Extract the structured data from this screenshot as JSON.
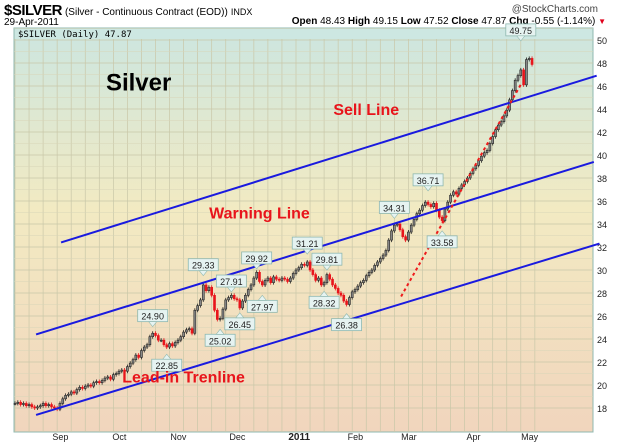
{
  "header": {
    "symbol": "$SILVER",
    "description": "(Silver - Continuous Contract (EOD))",
    "exchange": "INDX",
    "date": "29-Apr-2011",
    "watermark": "@StockCharts.com",
    "open_label": "Open",
    "open": "48.43",
    "high_label": "High",
    "high": "49.15",
    "low_label": "Low",
    "low": "47.52",
    "close_label": "Close",
    "close": "47.87",
    "chg_label": "Chg",
    "chg": "-0.55 (-1.14%)",
    "chg_color": "#e0001b"
  },
  "chart_data": {
    "type": "candlestick",
    "legend": "$SILVER (Daily) 47.87",
    "ylim": [
      16.5,
      51
    ],
    "y_ticks": [
      18,
      20,
      22,
      24,
      26,
      28,
      30,
      32,
      34,
      36,
      38,
      40,
      42,
      44,
      46,
      48,
      50
    ],
    "x_ticks": [
      {
        "label": "Sep",
        "bar": 19
      },
      {
        "label": "Oct",
        "bar": 40
      },
      {
        "label": "Nov",
        "bar": 61
      },
      {
        "label": "Dec",
        "bar": 82
      },
      {
        "label": "2011",
        "bar": 104,
        "bold": true
      },
      {
        "label": "Feb",
        "bar": 124
      },
      {
        "label": "Mar",
        "bar": 143
      },
      {
        "label": "Apr",
        "bar": 166
      },
      {
        "label": "May",
        "bar": 186
      }
    ],
    "grid": true,
    "colors": {
      "up": "#222222",
      "down": "#e8141b",
      "trendline": "#1a1adf",
      "dotted": "#ee1c1c",
      "label_text": "#e8141b"
    },
    "close": [
      18.4,
      18.5,
      18.3,
      18.4,
      18.2,
      18.3,
      18.1,
      18.0,
      18.1,
      18.2,
      18.4,
      18.2,
      18.3,
      18.1,
      18.0,
      17.9,
      18.4,
      18.8,
      19.1,
      19.2,
      19.4,
      19.3,
      19.6,
      19.8,
      19.7,
      19.9,
      20.0,
      19.9,
      20.2,
      20.3,
      20.2,
      20.4,
      20.6,
      20.7,
      20.5,
      20.9,
      21.0,
      21.2,
      21.3,
      21.2,
      21.6,
      21.9,
      22.2,
      22.6,
      22.4,
      23.0,
      23.3,
      23.5,
      24.2,
      24.5,
      24.3,
      23.9,
      23.9,
      23.5,
      23.3,
      23.6,
      23.4,
      23.7,
      23.9,
      24.2,
      24.6,
      24.8,
      24.9,
      24.5,
      26.5,
      26.9,
      27.4,
      28.7,
      28.2,
      28.5,
      27.8,
      26.5,
      25.7,
      25.8,
      26.6,
      27.4,
      27.6,
      27.8,
      27.5,
      27.4,
      26.7,
      27.3,
      27.8,
      28.3,
      28.7,
      29.3,
      29.8,
      29.0,
      28.7,
      29.1,
      29.3,
      28.9,
      29.4,
      29.2,
      29.1,
      29.3,
      29.2,
      29.0,
      29.3,
      29.7,
      30.0,
      30.2,
      30.5,
      30.4,
      30.7,
      30.0,
      29.6,
      29.1,
      29.3,
      28.7,
      28.9,
      29.6,
      29.2,
      28.7,
      28.4,
      28.0,
      27.8,
      27.3,
      27.0,
      27.6,
      28.1,
      28.3,
      28.6,
      28.9,
      29.1,
      29.5,
      29.8,
      30.0,
      30.4,
      30.7,
      31.0,
      31.3,
      31.7,
      32.6,
      33.4,
      33.9,
      34.0,
      33.5,
      32.9,
      32.6,
      33.3,
      33.9,
      34.4,
      34.9,
      35.2,
      35.6,
      35.9,
      35.7,
      35.5,
      35.8,
      35.2,
      34.6,
      34.3,
      35.3,
      35.9,
      36.5,
      36.8,
      36.6,
      37.1,
      37.4,
      37.7,
      38.0,
      38.4,
      38.8,
      39.1,
      39.5,
      39.9,
      40.2,
      40.4,
      41.0,
      41.6,
      42.2,
      42.6,
      42.9,
      43.4,
      43.9,
      44.8,
      45.6,
      46.5,
      46.9,
      47.4,
      46.1,
      48.3,
      48.4,
      47.87
    ],
    "annotations": [
      {
        "text": "24.90",
        "bar": 49,
        "value": 24.9,
        "type": "high"
      },
      {
        "text": "22.85",
        "bar": 54,
        "value": 22.85,
        "type": "low"
      },
      {
        "text": "29.33",
        "bar": 67,
        "value": 29.33,
        "type": "high"
      },
      {
        "text": "25.02",
        "bar": 73,
        "value": 25.02,
        "type": "low"
      },
      {
        "text": "27.91",
        "bar": 77,
        "value": 27.91,
        "type": "high"
      },
      {
        "text": "26.45",
        "bar": 80,
        "value": 26.45,
        "type": "low"
      },
      {
        "text": "29.92",
        "bar": 86,
        "value": 29.92,
        "type": "high"
      },
      {
        "text": "27.97",
        "bar": 88,
        "value": 27.97,
        "type": "low"
      },
      {
        "text": "31.21",
        "bar": 104,
        "value": 31.21,
        "type": "high"
      },
      {
        "text": "29.81",
        "bar": 111,
        "value": 29.81,
        "type": "high"
      },
      {
        "text": "28.32",
        "bar": 110,
        "value": 28.32,
        "type": "low"
      },
      {
        "text": "26.38",
        "bar": 118,
        "value": 26.38,
        "type": "low"
      },
      {
        "text": "34.31",
        "bar": 135,
        "value": 34.31,
        "type": "high"
      },
      {
        "text": "36.71",
        "bar": 147,
        "value": 36.71,
        "type": "high"
      },
      {
        "text": "33.58",
        "bar": 152,
        "value": 33.58,
        "type": "low"
      },
      {
        "text": "49.75",
        "bar": 180,
        "value": 49.75,
        "type": "high"
      }
    ],
    "trendlines": [
      {
        "name": "sell-line",
        "from": [
          16.4,
          32.4
        ],
        "to": [
          207,
          46.9
        ],
        "style": "solid"
      },
      {
        "name": "warning-line",
        "from": [
          7.5,
          24.4
        ],
        "to": [
          206,
          39.4
        ],
        "style": "solid"
      },
      {
        "name": "lead-in-trendline",
        "from": [
          7.5,
          17.4
        ],
        "to": [
          208,
          32.3
        ],
        "style": "solid"
      },
      {
        "name": "steep-trendline",
        "from": [
          137.4,
          27.7
        ],
        "to": [
          180.4,
          46.3
        ],
        "style": "dotted"
      }
    ],
    "text_labels": [
      {
        "name": "title-silver",
        "text": "Silver",
        "bar": 44,
        "value": 45.6,
        "color": "#000000",
        "size": "big"
      },
      {
        "name": "sell-line-label",
        "text": "Sell Line",
        "bar": 125,
        "value": 43.5,
        "color": "#e8141b"
      },
      {
        "name": "warning-line-label",
        "text": "Warning Line",
        "bar": 87,
        "value": 34.5,
        "color": "#e8141b"
      },
      {
        "name": "lead-in-label",
        "text": "Lead-in Trenline",
        "bar": 60,
        "value": 20.2,
        "color": "#e8141b"
      }
    ]
  }
}
